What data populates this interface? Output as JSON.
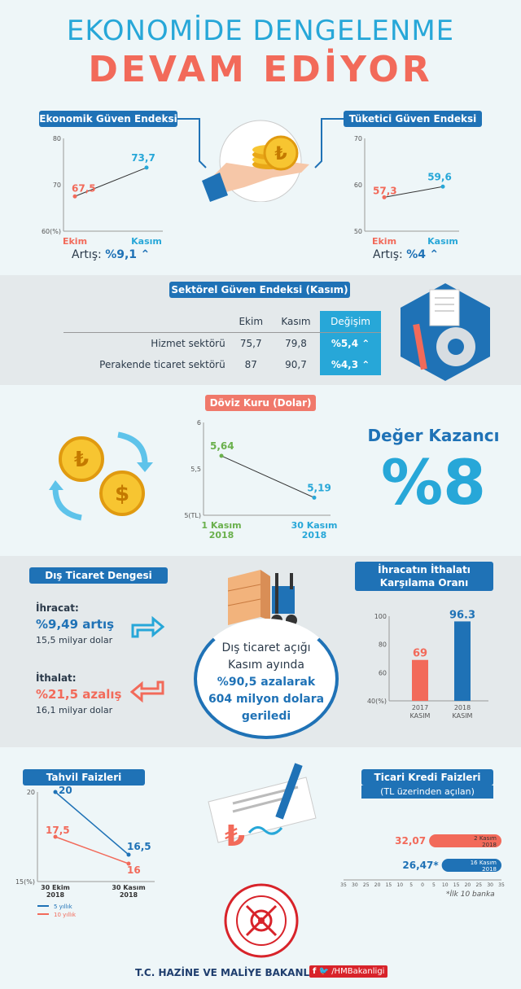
{
  "header": {
    "line1": "EKONOMİDE DENGELENME",
    "line2": "DEVAM EDİYOR"
  },
  "colors": {
    "blue": "#1f72b6",
    "light_blue": "#27a7d8",
    "red": "#f26a5a",
    "band": "#e3e8ea"
  },
  "sections": {
    "egi": {
      "title": "Ekonomik Güven Endeksi",
      "increase_label": "Artış:",
      "increase_value": "%9,1"
    },
    "tgi": {
      "title": "Tüketici Güven Endeksi",
      "increase_label": "Artış:",
      "increase_value": "%4"
    },
    "sector": {
      "title": "Sektörel Güven Endeksi (Kasım)",
      "columns": [
        "Ekim",
        "Kasım",
        "Değişim"
      ],
      "rows": [
        {
          "name": "Hizmet sektörü",
          "ekim": "75,7",
          "kasim": "79,8",
          "change": "%5,4"
        },
        {
          "name": "Perakende ticaret sektörü",
          "ekim": "87",
          "kasim": "90,7",
          "change": "%4,3"
        }
      ]
    },
    "doviz": {
      "title": "Döviz Kuru (Dolar)",
      "gain_label": "Değer Kazancı",
      "gain_value": "%8"
    },
    "trade": {
      "title": "Dış Ticaret Dengesi",
      "export_label": "İhracat:",
      "export_change": "%9,49 artış",
      "export_amount": "15,5 milyar dolar",
      "import_label": "İthalat:",
      "import_change": "%21,5 azalış",
      "import_amount": "16,1 milyar dolar",
      "deficit_lines": [
        "Dış ticaret açığı",
        "Kasım ayında",
        "%90,5 azalarak",
        "604 milyon dolara",
        "geriledi"
      ]
    },
    "coverage": {
      "title_line1": "İhracatın İthalatı",
      "title_line2": "Karşılama Oranı"
    },
    "bonds": {
      "title": "Tahvil Faizleri"
    },
    "credit": {
      "title": "Ticari Kredi Faizleri",
      "subtitle": "(TL üzerinden açılan)",
      "footnote": "*İlk 10 banka"
    }
  },
  "footer": {
    "ministry": "T.C. HAZİNE VE MALİYE BAKANLIĞI",
    "handle": "/HMBakanligi",
    "seal_text": "TÜRKİYE CUMHURİYETİ HAZİNE VE MALİYE BAKANLIĞI"
  },
  "chart_data": [
    {
      "id": "egi",
      "type": "line",
      "categories": [
        "Ekim",
        "Kasım"
      ],
      "values": [
        67.5,
        73.7
      ],
      "value_labels": [
        "67,5",
        "73,7"
      ],
      "yticks": [
        "80",
        "70",
        "60(%)"
      ],
      "ylim": [
        60,
        80
      ]
    },
    {
      "id": "tgi",
      "type": "line",
      "categories": [
        "Ekim",
        "Kasım"
      ],
      "values": [
        57.3,
        59.6
      ],
      "value_labels": [
        "57,3",
        "59,6"
      ],
      "yticks": [
        "70",
        "60",
        "50"
      ],
      "ylim": [
        50,
        70
      ]
    },
    {
      "id": "doviz",
      "type": "line",
      "categories": [
        "1 Kasım 2018",
        "30 Kasım 2018"
      ],
      "values": [
        5.64,
        5.19
      ],
      "value_labels": [
        "5,64",
        "5,19"
      ],
      "yticks": [
        "6",
        "5,5",
        "5(TL)"
      ],
      "ylim": [
        5,
        6
      ]
    },
    {
      "id": "coverage",
      "type": "bar",
      "categories": [
        "2017 KASIM",
        "2018 KASIM"
      ],
      "values": [
        69,
        96.3
      ],
      "value_labels": [
        "69",
        "96.3"
      ],
      "yticks": [
        "100",
        "80",
        "60",
        "40(%)"
      ],
      "ylim": [
        40,
        100
      ]
    },
    {
      "id": "bonds",
      "type": "line",
      "categories": [
        "30 Ekim 2018",
        "30 Kasım 2018"
      ],
      "series": [
        {
          "name": "5 yıllık",
          "values": [
            20,
            16.5
          ],
          "labels": [
            "20",
            "16,5"
          ]
        },
        {
          "name": "10 yıllık",
          "values": [
            17.5,
            16
          ],
          "labels": [
            "17,5",
            "16"
          ]
        }
      ],
      "yticks": [
        "20",
        "15(%)"
      ],
      "ylim": [
        15,
        20
      ]
    },
    {
      "id": "credit",
      "type": "bar",
      "categories": [
        "2 Kasım 2018",
        "16 Kasım 2018"
      ],
      "values": [
        32.07,
        26.47
      ],
      "value_labels": [
        "32,07",
        "26,47*"
      ],
      "xticks": [
        "35",
        "30",
        "25",
        "20",
        "15",
        "10",
        "5",
        "0",
        "5",
        "10",
        "15",
        "20",
        "25",
        "30",
        "35"
      ]
    }
  ]
}
